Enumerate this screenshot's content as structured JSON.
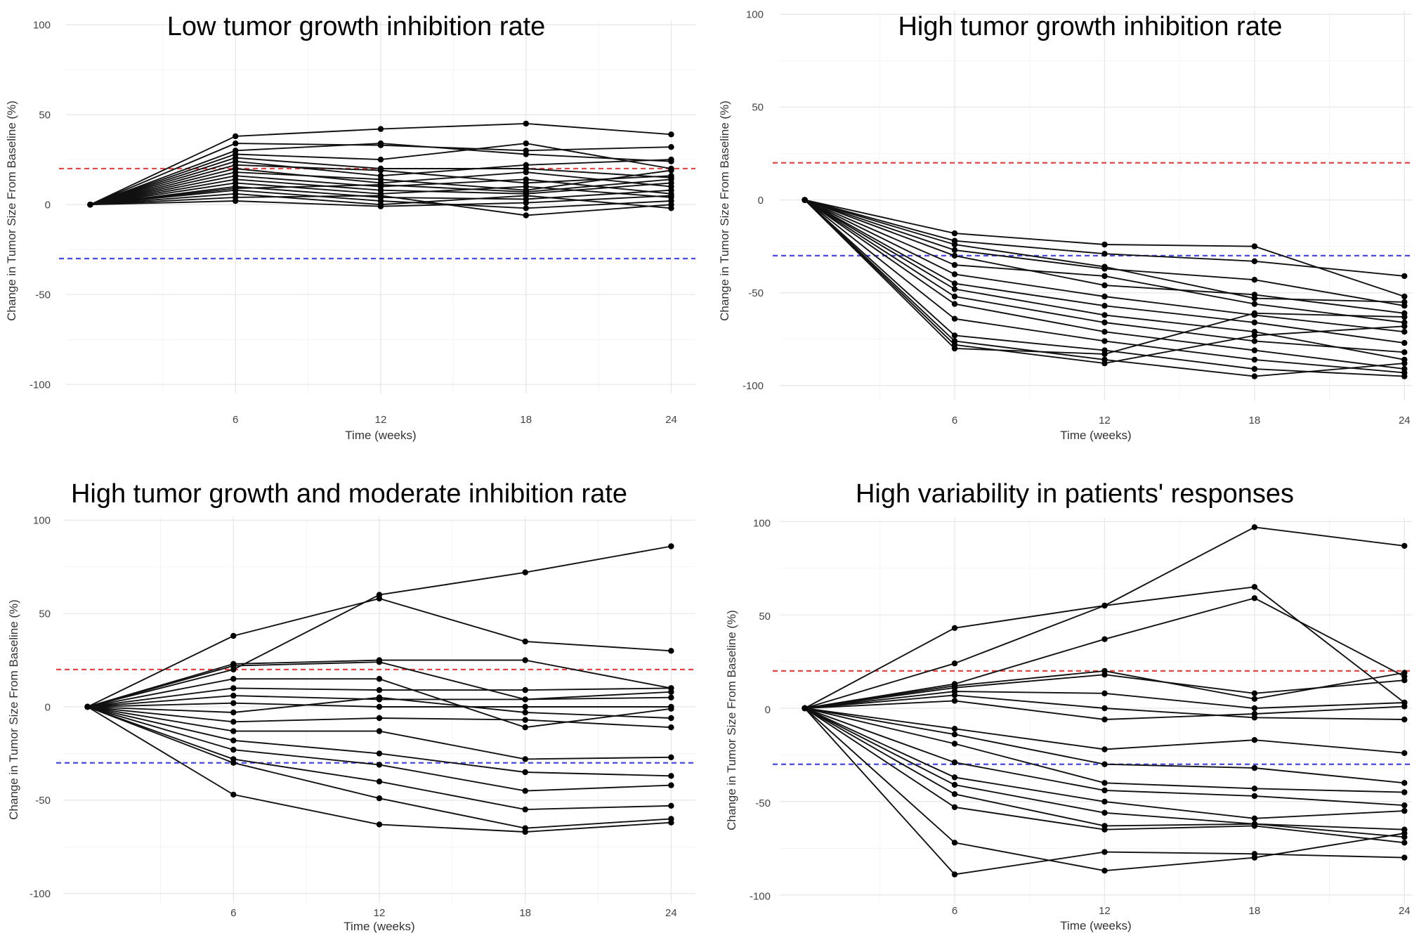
{
  "colors": {
    "progression": "#e04848",
    "response": "#4a4ae0",
    "line": "#111111",
    "grid": "#e6e6e6"
  },
  "chart_data": [
    {
      "type": "line",
      "title": "Low tumor growth inhibition rate",
      "xlabel": "Time (weeks)",
      "ylabel": "Change in Tumor Size From Baseline (%)",
      "x": [
        0,
        6,
        12,
        18,
        24
      ],
      "x_ticks": [
        "6",
        "12",
        "18",
        "24"
      ],
      "y_ticks": [
        "100",
        "50",
        "0",
        "-50",
        "-100"
      ],
      "xlim": [
        -1,
        25
      ],
      "ylim": [
        -105,
        102
      ],
      "reference_lines": [
        20,
        -30
      ],
      "series": [
        {
          "values": [
            0,
            38,
            42,
            45,
            39
          ]
        },
        {
          "values": [
            0,
            34,
            33,
            30,
            32
          ]
        },
        {
          "values": [
            0,
            30,
            34,
            28,
            24
          ]
        },
        {
          "values": [
            0,
            28,
            25,
            34,
            20
          ]
        },
        {
          "values": [
            0,
            26,
            20,
            20,
            15
          ]
        },
        {
          "values": [
            0,
            24,
            16,
            22,
            25
          ]
        },
        {
          "values": [
            0,
            22,
            19,
            12,
            16
          ]
        },
        {
          "values": [
            0,
            20,
            12,
            18,
            10
          ]
        },
        {
          "values": [
            0,
            18,
            14,
            8,
            19
          ]
        },
        {
          "values": [
            0,
            16,
            10,
            14,
            6
          ]
        },
        {
          "values": [
            0,
            14,
            8,
            6,
            12
          ]
        },
        {
          "values": [
            0,
            12,
            6,
            10,
            4
          ]
        },
        {
          "values": [
            0,
            10,
            4,
            3,
            8
          ]
        },
        {
          "values": [
            0,
            8,
            2,
            -2,
            2
          ]
        },
        {
          "values": [
            0,
            6,
            0,
            5,
            -2
          ]
        },
        {
          "values": [
            0,
            4,
            5,
            -6,
            0
          ]
        },
        {
          "values": [
            0,
            2,
            -1,
            1,
            5
          ]
        },
        {
          "values": [
            0,
            9,
            11,
            7,
            14
          ]
        }
      ]
    },
    {
      "type": "line",
      "title": "High tumor growth inhibition rate",
      "xlabel": "Time (weeks)",
      "ylabel": "Change in Tumor Size From Baseline (%)",
      "x": [
        0,
        6,
        12,
        18,
        24
      ],
      "x_ticks": [
        "6",
        "12",
        "18",
        "24"
      ],
      "y_ticks": [
        "100",
        "50",
        "0",
        "-50",
        "-100"
      ],
      "xlim": [
        -1,
        24.3
      ],
      "ylim": [
        -108,
        102
      ],
      "reference_lines": [
        20,
        -30
      ],
      "series": [
        {
          "values": [
            0,
            -18,
            -24,
            -25,
            -52
          ]
        },
        {
          "values": [
            0,
            -22,
            -29,
            -33,
            -41
          ]
        },
        {
          "values": [
            0,
            -27,
            -37,
            -43,
            -57
          ]
        },
        {
          "values": [
            0,
            -30,
            -46,
            -51,
            -61
          ]
        },
        {
          "values": [
            0,
            -35,
            -41,
            -56,
            -66
          ]
        },
        {
          "values": [
            0,
            -40,
            -52,
            -62,
            -71
          ]
        },
        {
          "values": [
            0,
            -45,
            -57,
            -66,
            -77
          ]
        },
        {
          "values": [
            0,
            -48,
            -62,
            -71,
            -86
          ]
        },
        {
          "values": [
            0,
            -52,
            -66,
            -76,
            -82
          ]
        },
        {
          "values": [
            0,
            -56,
            -71,
            -81,
            -91
          ]
        },
        {
          "values": [
            0,
            -64,
            -76,
            -86,
            -93
          ]
        },
        {
          "values": [
            0,
            -73,
            -81,
            -91,
            -95
          ]
        },
        {
          "values": [
            0,
            -76,
            -86,
            -95,
            -88
          ]
        },
        {
          "values": [
            0,
            -78,
            -88,
            -73,
            -68
          ]
        },
        {
          "values": [
            0,
            -80,
            -83,
            -61,
            -63
          ]
        },
        {
          "values": [
            0,
            -24,
            -36,
            -53,
            -55
          ]
        }
      ]
    },
    {
      "type": "line",
      "title": "High tumor growth and moderate inhibition rate",
      "xlabel": "Time (weeks)",
      "ylabel": "Change in Tumor Size From Baseline (%)",
      "x": [
        0,
        6,
        12,
        18,
        24
      ],
      "x_ticks": [
        "6",
        "12",
        "18",
        "24"
      ],
      "y_ticks": [
        "100",
        "50",
        "0",
        "-50",
        "-100"
      ],
      "xlim": [
        -1,
        25
      ],
      "ylim": [
        -105,
        102
      ],
      "reference_lines": [
        20,
        -30
      ],
      "series": [
        {
          "values": [
            0,
            20,
            60,
            72,
            86
          ]
        },
        {
          "values": [
            0,
            38,
            58,
            35,
            30
          ]
        },
        {
          "values": [
            0,
            23,
            25,
            25,
            10
          ]
        },
        {
          "values": [
            0,
            22,
            24,
            4,
            8
          ]
        },
        {
          "values": [
            0,
            15,
            15,
            -11,
            -1
          ]
        },
        {
          "values": [
            0,
            10,
            9,
            9,
            10
          ]
        },
        {
          "values": [
            0,
            6,
            4,
            4,
            5
          ]
        },
        {
          "values": [
            0,
            2,
            0,
            0,
            0
          ]
        },
        {
          "values": [
            0,
            -3,
            5,
            -3,
            -6
          ]
        },
        {
          "values": [
            0,
            -8,
            -6,
            -7,
            -11
          ]
        },
        {
          "values": [
            0,
            -13,
            -13,
            -28,
            -27
          ]
        },
        {
          "values": [
            0,
            -18,
            -25,
            -35,
            -37
          ]
        },
        {
          "values": [
            0,
            -23,
            -31,
            -45,
            -42
          ]
        },
        {
          "values": [
            0,
            -28,
            -40,
            -55,
            -53
          ]
        },
        {
          "values": [
            0,
            -30,
            -49,
            -65,
            -60
          ]
        },
        {
          "values": [
            0,
            -47,
            -63,
            -67,
            -62
          ]
        }
      ]
    },
    {
      "type": "line",
      "title": "High variability in patients' responses",
      "xlabel": "Time (weeks)",
      "ylabel": "Change in Tumor Size From Baseline (%)",
      "x": [
        0,
        6,
        12,
        18,
        24
      ],
      "x_ticks": [
        "6",
        "12",
        "18",
        "24"
      ],
      "y_ticks": [
        "100",
        "50",
        "0",
        "-50",
        "-100"
      ],
      "xlim": [
        -1,
        24.3
      ],
      "ylim": [
        -105,
        102
      ],
      "reference_lines": [
        20,
        -30
      ],
      "series": [
        {
          "values": [
            0,
            43,
            55,
            97,
            87
          ]
        },
        {
          "values": [
            0,
            24,
            55,
            65,
            3
          ]
        },
        {
          "values": [
            0,
            13,
            37,
            59,
            17
          ]
        },
        {
          "values": [
            0,
            12,
            20,
            5,
            19
          ]
        },
        {
          "values": [
            0,
            11,
            18,
            8,
            15
          ]
        },
        {
          "values": [
            0,
            9,
            8,
            0,
            3
          ]
        },
        {
          "values": [
            0,
            7,
            0,
            -5,
            -6
          ]
        },
        {
          "values": [
            0,
            4,
            -6,
            -3,
            1
          ]
        },
        {
          "values": [
            0,
            -11,
            -22,
            -17,
            -24
          ]
        },
        {
          "values": [
            0,
            -14,
            -30,
            -32,
            -40
          ]
        },
        {
          "values": [
            0,
            -19,
            -40,
            -43,
            -45
          ]
        },
        {
          "values": [
            0,
            -29,
            -44,
            -47,
            -52
          ]
        },
        {
          "values": [
            0,
            -37,
            -50,
            -59,
            -55
          ]
        },
        {
          "values": [
            0,
            -41,
            -56,
            -62,
            -65
          ]
        },
        {
          "values": [
            0,
            -46,
            -63,
            -62,
            -69
          ]
        },
        {
          "values": [
            0,
            -53,
            -65,
            -63,
            -72
          ]
        },
        {
          "values": [
            0,
            -72,
            -87,
            -80,
            -67
          ]
        },
        {
          "values": [
            0,
            -89,
            -77,
            -78,
            -80
          ]
        }
      ]
    }
  ]
}
